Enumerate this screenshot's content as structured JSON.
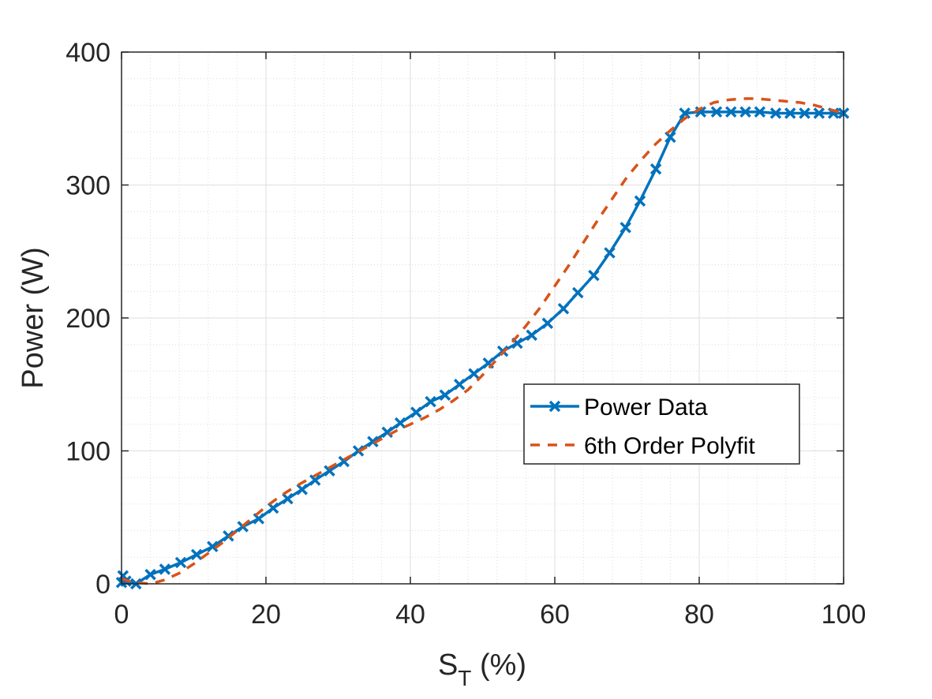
{
  "chart_data": {
    "type": "line",
    "title": "",
    "xlabel": "S",
    "xlabel_subscript": "T",
    "xlabel_suffix": " (%)",
    "ylabel": "Power (W)",
    "xlim": [
      0,
      100
    ],
    "ylim": [
      0,
      400
    ],
    "xticks": [
      0,
      20,
      40,
      60,
      80,
      100
    ],
    "yticks": [
      0,
      100,
      200,
      300,
      400
    ],
    "xtick_labels": [
      "0",
      "20",
      "40",
      "60",
      "80",
      "100"
    ],
    "ytick_labels": [
      "0",
      "100",
      "200",
      "300",
      "400"
    ],
    "grid": true,
    "minor_grid": true,
    "legend_position": "center-right",
    "series": [
      {
        "name": "Power Data",
        "style": "solid-x-markers",
        "color": "#0072BD",
        "x": [
          0,
          0.2,
          0.6,
          2,
          4,
          6,
          8.2,
          10.4,
          12.6,
          14.8,
          16.8,
          19,
          21,
          23,
          25,
          26.8,
          28.8,
          30.8,
          32.8,
          34.8,
          36.8,
          38.6,
          40.8,
          42.8,
          44.8,
          46.8,
          48.8,
          50.8,
          52.8,
          54.8,
          56.8,
          59,
          61.2,
          63.2,
          65.4,
          67.6,
          69.8,
          71.8,
          74,
          76,
          78,
          80.2,
          82.4,
          84.4,
          86.4,
          88.4,
          90.6,
          92.6,
          94.6,
          96.6,
          98.6,
          100
        ],
        "y": [
          1,
          6,
          2,
          0,
          7,
          11,
          16,
          22,
          28,
          36,
          43,
          49,
          57,
          64,
          71,
          78,
          85,
          92,
          100,
          107,
          114,
          121,
          129,
          137,
          142,
          150,
          158,
          166,
          175,
          181,
          187,
          196,
          207,
          219,
          232,
          249,
          268,
          288,
          312,
          336,
          354,
          355,
          355,
          355,
          355,
          355,
          354,
          354,
          354,
          354,
          354,
          354
        ]
      },
      {
        "name": "6th Order Polyfit",
        "style": "dashed",
        "color": "#D95319",
        "x": [
          0,
          1,
          2,
          4,
          6,
          8,
          10,
          12,
          14,
          16,
          18,
          20,
          22,
          24,
          26,
          28,
          30,
          32,
          34,
          36,
          38,
          40,
          42,
          44,
          46,
          48,
          50,
          52,
          54,
          56,
          58,
          60,
          62,
          64,
          66,
          68,
          70,
          72,
          74,
          76,
          78,
          80,
          82,
          84,
          86,
          88,
          90,
          92,
          94,
          96,
          98,
          100
        ],
        "y": [
          4,
          2,
          1,
          0,
          3,
          8,
          15,
          23,
          31,
          40,
          49,
          58,
          66,
          73,
          79,
          85,
          91,
          97,
          103,
          109,
          115,
          120,
          125,
          131,
          138,
          146,
          157,
          169,
          181,
          194,
          208,
          224,
          240,
          257,
          274,
          290,
          306,
          319,
          331,
          341,
          350,
          357,
          362,
          364,
          365,
          365,
          364,
          363,
          362,
          360,
          357,
          354
        ]
      }
    ]
  }
}
